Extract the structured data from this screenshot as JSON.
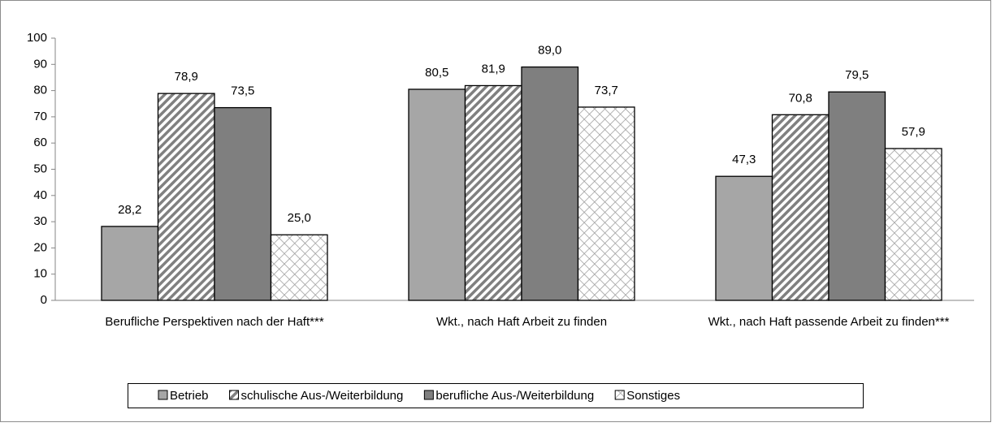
{
  "chart_data": {
    "type": "bar",
    "categories": [
      "Berufliche Perspektiven nach der Haft***",
      "Wkt., nach Haft Arbeit zu finden",
      "Wkt., nach Haft passende Arbeit zu finden***"
    ],
    "series": [
      {
        "name": "Betrieb",
        "color": "#a6a6a6",
        "pattern": "solid",
        "values": [
          28.2,
          80.5,
          47.3
        ],
        "value_labels": [
          "28,2",
          "80,5",
          "47,3"
        ]
      },
      {
        "name": "schulische Aus-/Weiterbildung",
        "color": "#808080",
        "pattern": "diagonal",
        "values": [
          78.9,
          81.9,
          70.8
        ],
        "value_labels": [
          "78,9",
          "81,9",
          "70,8"
        ]
      },
      {
        "name": "berufliche Aus-/Weiterbildung",
        "color": "#7f7f7f",
        "pattern": "solid",
        "values": [
          73.5,
          89.0,
          79.5
        ],
        "value_labels": [
          "73,5",
          "89,0",
          "79,5"
        ]
      },
      {
        "name": "Sonstiges",
        "color": "#9a9a9a",
        "pattern": "cross",
        "values": [
          25.0,
          73.7,
          57.9
        ],
        "value_labels": [
          "25,0",
          "73,7",
          "57,9"
        ]
      }
    ],
    "ylim": [
      0,
      100
    ],
    "yticks": [
      0,
      10,
      20,
      30,
      40,
      50,
      60,
      70,
      80,
      90,
      100
    ],
    "grid": false,
    "legend": "bottom"
  }
}
